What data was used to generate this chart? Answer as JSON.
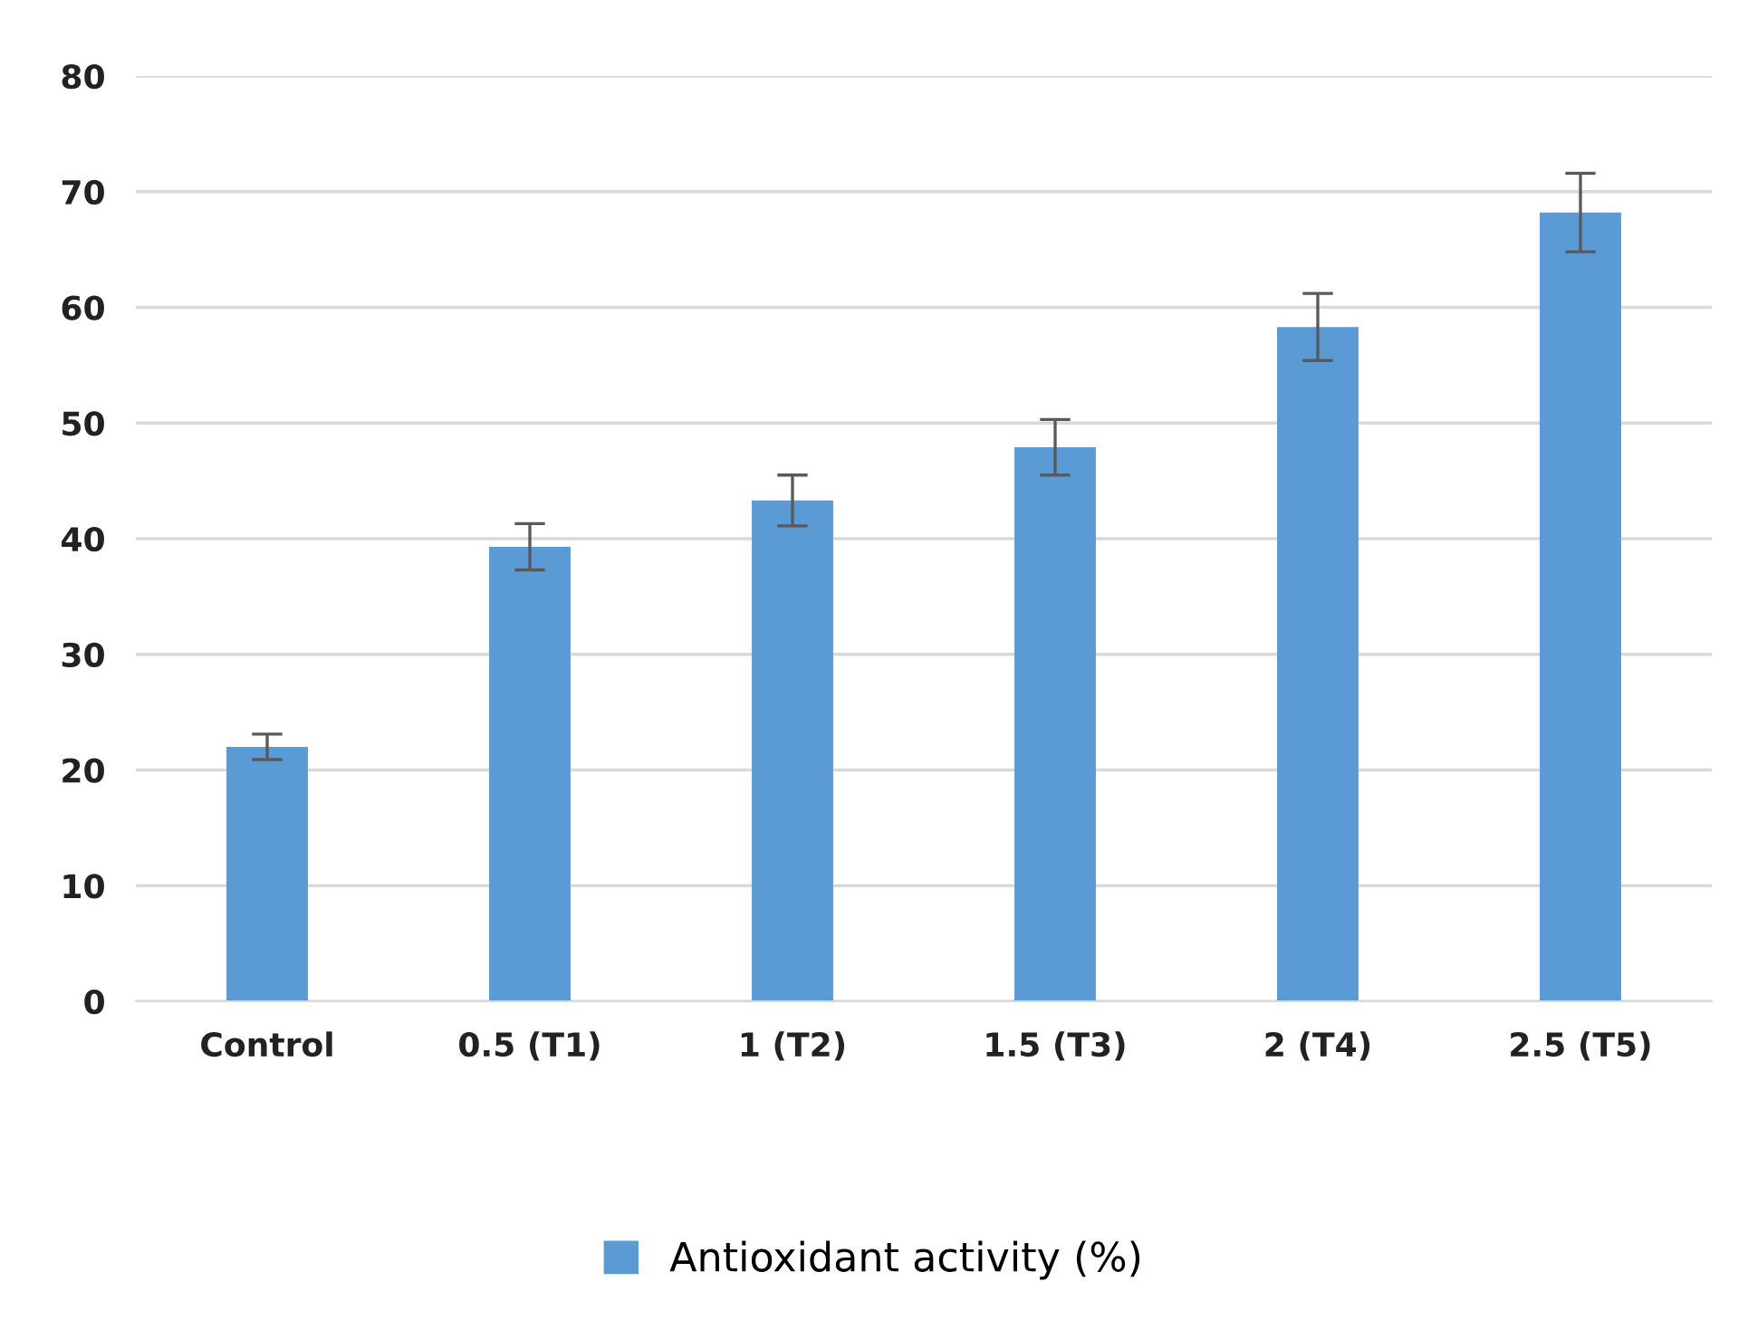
{
  "chart_data": {
    "type": "bar",
    "categories": [
      "Control",
      "0.5 (T1)",
      "1 (T2)",
      "1.5 (T3)",
      "2 (T4)",
      "2.5 (T5)"
    ],
    "series": [
      {
        "name": "Antioxidant activity (%)",
        "color": "#5b9bd5",
        "values": [
          22.0,
          39.3,
          43.3,
          47.9,
          58.3,
          68.2
        ],
        "errors": [
          1.1,
          2.0,
          2.2,
          2.4,
          2.9,
          3.4
        ]
      }
    ],
    "ylim": [
      0,
      80
    ],
    "yticks": [
      0,
      10,
      20,
      30,
      40,
      50,
      60,
      70,
      80
    ],
    "grid": "y",
    "legend": "bottom"
  }
}
